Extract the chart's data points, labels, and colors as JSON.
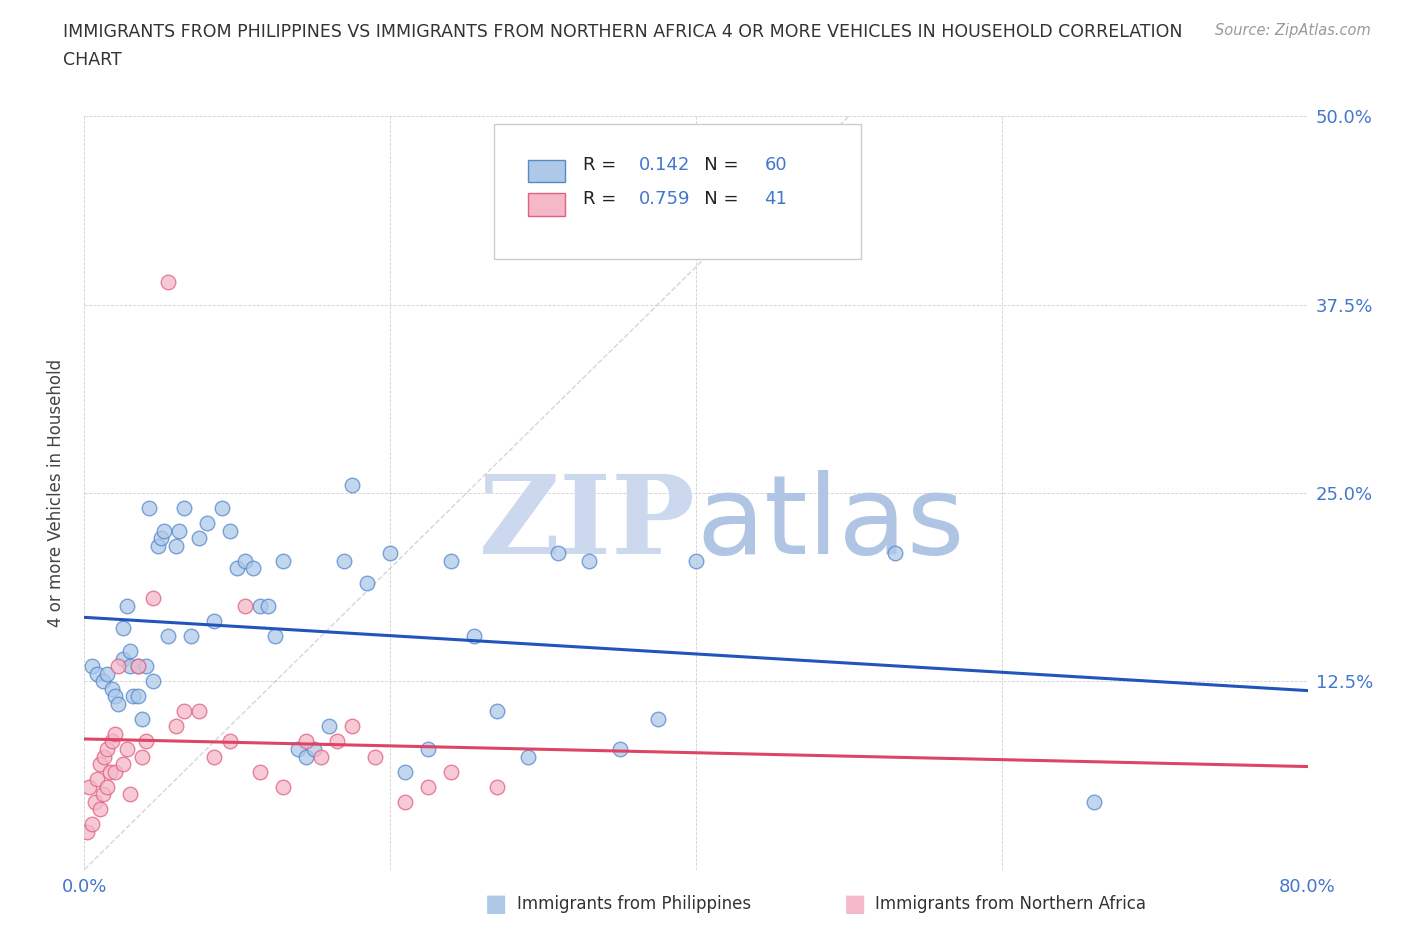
{
  "title_line1": "IMMIGRANTS FROM PHILIPPINES VS IMMIGRANTS FROM NORTHERN AFRICA 4 OR MORE VEHICLES IN HOUSEHOLD CORRELATION",
  "title_line2": "CHART",
  "source": "Source: ZipAtlas.com",
  "ylabel": "4 or more Vehicles in Household",
  "xlim": [
    0.0,
    0.8
  ],
  "ylim": [
    0.0,
    0.5
  ],
  "xticks": [
    0.0,
    0.2,
    0.4,
    0.6,
    0.8
  ],
  "yticks": [
    0.0,
    0.125,
    0.25,
    0.375,
    0.5
  ],
  "legend_blue_R": "0.142",
  "legend_blue_N": "60",
  "legend_pink_R": "0.759",
  "legend_pink_N": "41",
  "color_blue_fill": "#aec9e8",
  "color_blue_edge": "#5588cc",
  "color_pink_fill": "#f5b8c8",
  "color_pink_edge": "#e06080",
  "color_blue_line": "#2255bb",
  "color_pink_line": "#dd4466",
  "color_diag": "#bbbbbb",
  "color_tick_label": "#4477cc",
  "watermark_zip_color": "#ccd8ee",
  "watermark_atlas_color": "#b0c4e4",
  "blue_x": [
    0.005,
    0.008,
    0.012,
    0.015,
    0.018,
    0.02,
    0.022,
    0.025,
    0.025,
    0.028,
    0.03,
    0.03,
    0.032,
    0.035,
    0.035,
    0.038,
    0.04,
    0.042,
    0.045,
    0.048,
    0.05,
    0.052,
    0.055,
    0.06,
    0.062,
    0.065,
    0.07,
    0.075,
    0.08,
    0.085,
    0.09,
    0.095,
    0.1,
    0.105,
    0.11,
    0.115,
    0.12,
    0.125,
    0.13,
    0.14,
    0.145,
    0.15,
    0.16,
    0.17,
    0.175,
    0.185,
    0.2,
    0.21,
    0.225,
    0.24,
    0.255,
    0.27,
    0.29,
    0.31,
    0.33,
    0.35,
    0.375,
    0.4,
    0.53,
    0.66
  ],
  "blue_y": [
    0.135,
    0.13,
    0.125,
    0.13,
    0.12,
    0.115,
    0.11,
    0.14,
    0.16,
    0.175,
    0.145,
    0.135,
    0.115,
    0.135,
    0.115,
    0.1,
    0.135,
    0.24,
    0.125,
    0.215,
    0.22,
    0.225,
    0.155,
    0.215,
    0.225,
    0.24,
    0.155,
    0.22,
    0.23,
    0.165,
    0.24,
    0.225,
    0.2,
    0.205,
    0.2,
    0.175,
    0.175,
    0.155,
    0.205,
    0.08,
    0.075,
    0.08,
    0.095,
    0.205,
    0.255,
    0.19,
    0.21,
    0.065,
    0.08,
    0.205,
    0.155,
    0.105,
    0.075,
    0.21,
    0.205,
    0.08,
    0.1,
    0.205,
    0.21,
    0.045
  ],
  "pink_x": [
    0.002,
    0.003,
    0.005,
    0.007,
    0.008,
    0.01,
    0.01,
    0.012,
    0.013,
    0.015,
    0.015,
    0.017,
    0.018,
    0.02,
    0.02,
    0.022,
    0.025,
    0.028,
    0.03,
    0.035,
    0.038,
    0.04,
    0.045,
    0.055,
    0.06,
    0.065,
    0.075,
    0.085,
    0.095,
    0.105,
    0.115,
    0.13,
    0.145,
    0.155,
    0.165,
    0.175,
    0.19,
    0.21,
    0.225,
    0.24,
    0.27
  ],
  "pink_y": [
    0.025,
    0.055,
    0.03,
    0.045,
    0.06,
    0.04,
    0.07,
    0.05,
    0.075,
    0.055,
    0.08,
    0.065,
    0.085,
    0.065,
    0.09,
    0.135,
    0.07,
    0.08,
    0.05,
    0.135,
    0.075,
    0.085,
    0.18,
    0.39,
    0.095,
    0.105,
    0.105,
    0.075,
    0.085,
    0.175,
    0.065,
    0.055,
    0.085,
    0.075,
    0.085,
    0.095,
    0.075,
    0.045,
    0.055,
    0.065,
    0.055
  ]
}
